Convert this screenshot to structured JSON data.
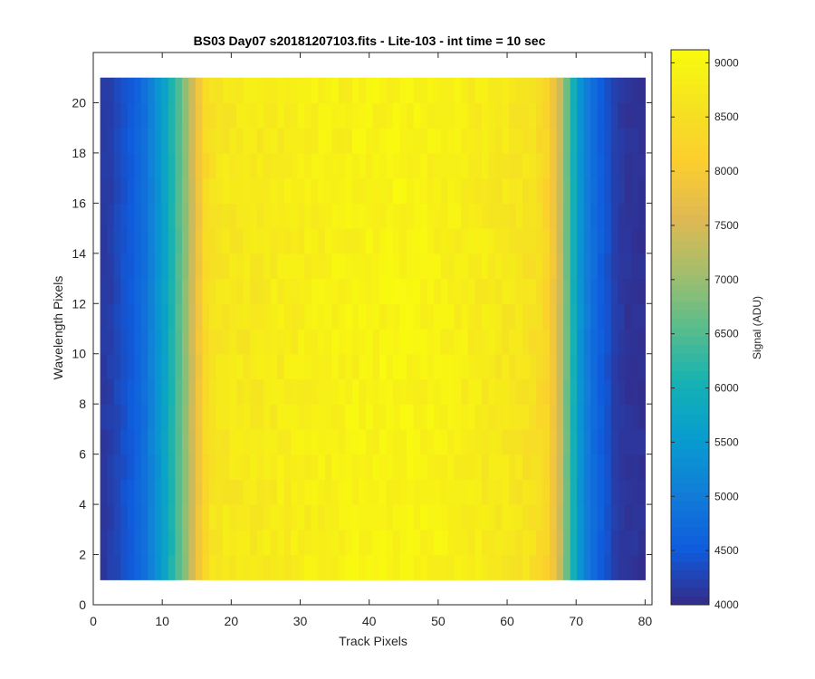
{
  "chart_data": {
    "type": "heatmap",
    "title": "BS03 Day07  s20181207103.fits - Lite-103 - int time = 10 sec",
    "xlabel": "Track Pixels",
    "ylabel": "Wavelength Pixels",
    "xlim": [
      0,
      81
    ],
    "ylim": [
      0,
      22
    ],
    "x_ticks": [
      0,
      10,
      20,
      30,
      40,
      50,
      60,
      70,
      80
    ],
    "y_ticks": [
      0,
      2,
      4,
      6,
      8,
      10,
      12,
      14,
      16,
      18,
      20
    ],
    "x_range": [
      1,
      80
    ],
    "y_range": [
      1,
      21
    ],
    "profile_track_pixel": [
      1,
      2,
      3,
      4,
      5,
      6,
      7,
      8,
      9,
      10,
      11,
      12,
      13,
      14,
      15,
      16,
      17,
      18,
      19,
      20,
      21,
      22,
      23,
      24,
      25,
      26,
      27,
      28,
      29,
      30,
      31,
      32,
      33,
      34,
      35,
      36,
      37,
      38,
      39,
      40,
      41,
      42,
      43,
      44,
      45,
      46,
      47,
      48,
      49,
      50,
      51,
      52,
      53,
      54,
      55,
      56,
      57,
      58,
      59,
      60,
      61,
      62,
      63,
      64,
      65,
      66,
      67,
      68,
      69,
      70,
      71,
      72,
      73,
      74,
      75,
      76,
      77,
      78,
      79,
      80
    ],
    "profile_signal": [
      4150,
      4200,
      4300,
      4400,
      4500,
      4650,
      4800,
      5100,
      5400,
      5700,
      6100,
      6500,
      6900,
      7400,
      7900,
      8350,
      8600,
      8650,
      8700,
      8700,
      8720,
      8740,
      8750,
      8760,
      8780,
      8790,
      8800,
      8820,
      8830,
      8850,
      8860,
      8870,
      8880,
      8890,
      8900,
      8910,
      8920,
      8930,
      8940,
      8950,
      8950,
      8960,
      8960,
      8970,
      8970,
      8960,
      8950,
      8940,
      8930,
      8920,
      8900,
      8880,
      8860,
      8840,
      8820,
      8800,
      8780,
      8760,
      8740,
      8710,
      8680,
      8650,
      8600,
      8550,
      8450,
      8250,
      7900,
      7400,
      6700,
      6000,
      5400,
      5000,
      4750,
      4550,
      4400,
      4200,
      4150,
      4100,
      4100,
      4080
    ],
    "colorbar": {
      "label": "Signal (ADU)",
      "min": 4000,
      "max": 9120,
      "ticks": [
        4000,
        4500,
        5000,
        5500,
        6000,
        6500,
        7000,
        7500,
        8000,
        8500,
        9000
      ],
      "colormap": "parula"
    }
  }
}
